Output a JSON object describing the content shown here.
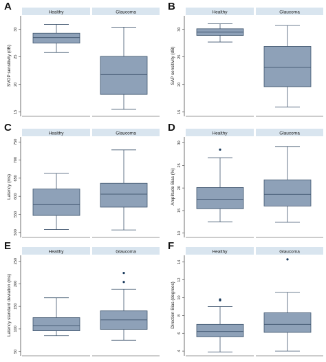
{
  "colors": {
    "box_fill": "#8ea1b8",
    "box_stroke": "#3d536c",
    "whisker": "#3d536c",
    "strip_fill": "#d9e5ef",
    "outlier": "#1a3a5c",
    "axis": "#333333"
  },
  "chart_data": [
    {
      "type": "box",
      "panel_label": "A",
      "ylabel": "SVOP sensitivity (dB)",
      "categories": [
        "Healthy",
        "Glaucoma"
      ],
      "ylim": [
        14.6,
        32.2
      ],
      "yticks": [
        15,
        20,
        25,
        30
      ],
      "ytick_labels": [
        "15",
        "20",
        "25",
        "30"
      ],
      "boxes": [
        {
          "min": 25.8,
          "q1": 27.5,
          "median": 28.5,
          "q3": 29.3,
          "max": 30.9,
          "outliers": []
        },
        {
          "min": 15.5,
          "q1": 18.2,
          "median": 21.8,
          "q3": 25.1,
          "max": 30.4,
          "outliers": []
        }
      ]
    },
    {
      "type": "box",
      "panel_label": "B",
      "ylabel": "SAP sensitivity (dB)",
      "categories": [
        "Healthy",
        "Glaucoma"
      ],
      "ylim": [
        14.6,
        32.2
      ],
      "yticks": [
        15,
        20,
        25,
        30
      ],
      "ytick_labels": [
        "15",
        "20",
        "25",
        "30"
      ],
      "boxes": [
        {
          "min": 27.7,
          "q1": 28.9,
          "median": 29.5,
          "q3": 30.1,
          "max": 31.0,
          "outliers": []
        },
        {
          "min": 15.9,
          "q1": 19.6,
          "median": 23.1,
          "q3": 26.9,
          "max": 30.7,
          "outliers": []
        }
      ]
    },
    {
      "type": "box",
      "panel_label": "C",
      "ylabel": "Latency (ms)",
      "categories": [
        "Healthy",
        "Glaucoma"
      ],
      "ylim": [
        492,
        760
      ],
      "yticks": [
        500,
        550,
        600,
        650,
        700,
        750
      ],
      "ytick_labels": [
        "500",
        "550",
        "600",
        "650",
        "700",
        "750"
      ],
      "boxes": [
        {
          "min": 508,
          "q1": 547,
          "median": 577,
          "q3": 620,
          "max": 663,
          "outliers": []
        },
        {
          "min": 507,
          "q1": 570,
          "median": 606,
          "q3": 636,
          "max": 728,
          "outliers": []
        }
      ]
    },
    {
      "type": "box",
      "panel_label": "D",
      "ylabel": "Amplitude Bias (%)",
      "categories": [
        "Healthy",
        "Glaucoma"
      ],
      "ylim": [
        9.5,
        31
      ],
      "yticks": [
        10,
        15,
        20,
        25,
        30
      ],
      "ytick_labels": [
        "10",
        "15",
        "20",
        "25",
        "30"
      ],
      "boxes": [
        {
          "min": 12.5,
          "q1": 15.4,
          "median": 17.5,
          "q3": 20.1,
          "max": 26.7,
          "outliers": [
            28.5
          ]
        },
        {
          "min": 12.4,
          "q1": 16.0,
          "median": 18.6,
          "q3": 21.8,
          "max": 29.2,
          "outliers": []
        }
      ]
    },
    {
      "type": "box",
      "panel_label": "E",
      "ylabel": "Latency standard deviation (ms)",
      "categories": [
        "Healthy",
        "Glaucoma"
      ],
      "ylim": [
        45,
        260
      ],
      "yticks": [
        50,
        100,
        150,
        200,
        250
      ],
      "ytick_labels": [
        "50",
        "100",
        "150",
        "200",
        "250"
      ],
      "boxes": [
        {
          "min": 85,
          "q1": 96,
          "median": 107,
          "q3": 125,
          "max": 169,
          "outliers": []
        },
        {
          "min": 75,
          "q1": 99,
          "median": 120,
          "q3": 140,
          "max": 188,
          "outliers": [
            204,
            224
          ]
        }
      ]
    },
    {
      "type": "box",
      "panel_label": "F",
      "ylabel": "Direction Bias (degrees)",
      "categories": [
        "Healthy",
        "Glaucoma"
      ],
      "ylim": [
        3.7,
        14.6
      ],
      "yticks": [
        4,
        6,
        8,
        10,
        12,
        14
      ],
      "ytick_labels": [
        "4",
        "6",
        "8",
        "10",
        "12",
        "14"
      ],
      "boxes": [
        {
          "min": 3.9,
          "q1": 5.6,
          "median": 6.2,
          "q3": 7.0,
          "max": 9.0,
          "outliers": [
            9.7,
            9.8
          ]
        },
        {
          "min": 4.0,
          "q1": 6.1,
          "median": 7.0,
          "q3": 8.3,
          "max": 10.6,
          "outliers": [
            14.3
          ]
        }
      ]
    }
  ]
}
